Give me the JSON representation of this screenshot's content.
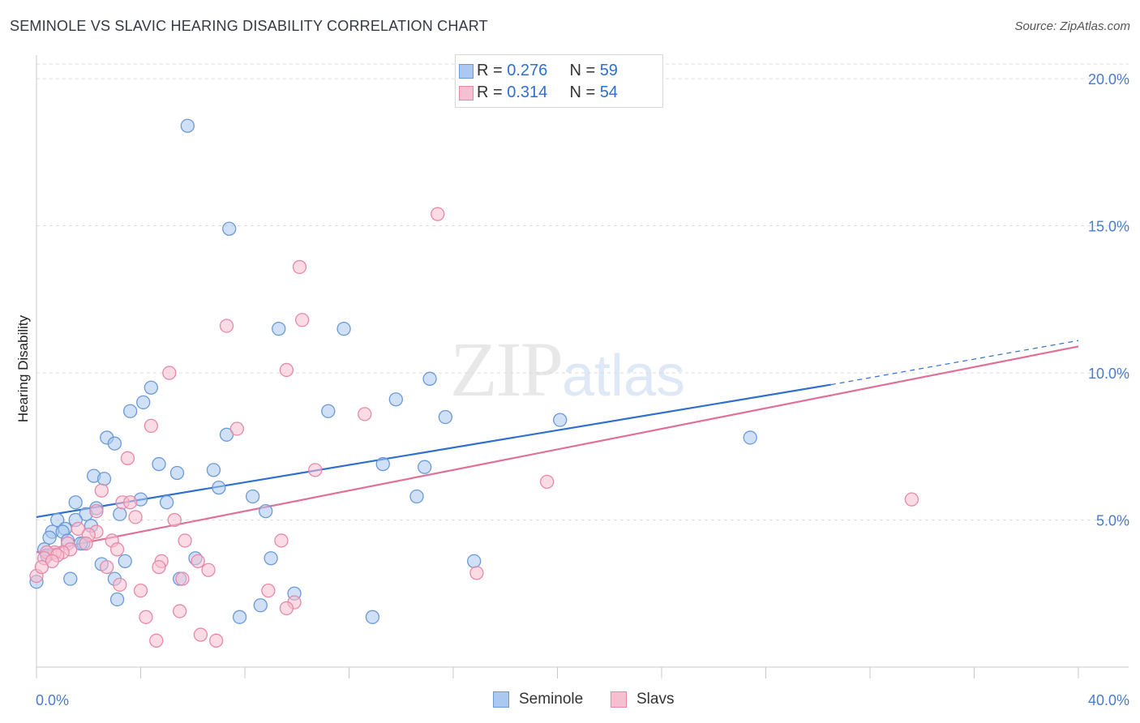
{
  "header": {
    "title": "SEMINOLE VS SLAVIC HEARING DISABILITY CORRELATION CHART",
    "source": "Source: ZipAtlas.com"
  },
  "watermark": {
    "zip": "ZIP",
    "atlas": "atlas"
  },
  "legend": {
    "rows": [
      {
        "r_label": "R = ",
        "r_value": "0.276",
        "n_label": "N = ",
        "n_value": "59",
        "color": "#aac8f0",
        "border": "#6a9ad8"
      },
      {
        "r_label": "R = ",
        "r_value": "0.314",
        "n_label": "N = ",
        "n_value": "54",
        "color": "#f7c0d0",
        "border": "#e888a8"
      }
    ]
  },
  "bottom_legend": {
    "seminole": "Seminole",
    "slavs": "Slavs"
  },
  "chart_data": {
    "type": "scatter",
    "title": "SEMINOLE VS SLAVIC HEARING DISABILITY CORRELATION CHART",
    "xlabel": "",
    "ylabel": "Hearing Disability",
    "xlim": [
      0,
      40
    ],
    "ylim": [
      0,
      20.5
    ],
    "x_tick_labels": [
      "0.0%",
      "40.0%"
    ],
    "y_ticks": [
      5,
      10,
      15,
      20
    ],
    "y_tick_labels": [
      "5.0%",
      "10.0%",
      "15.0%",
      "20.0%"
    ],
    "grid": true,
    "series": [
      {
        "name": "Seminole",
        "color": "#6a9ad8",
        "fill": "#aac8f0",
        "line_color": "#2f6fd0",
        "trend": {
          "x0": 0,
          "y0": 5.1,
          "x1": 30.5,
          "y1": 9.6,
          "dash_to_x": 40,
          "dash_to_y": 11.1
        },
        "points": [
          [
            5.8,
            18.4
          ],
          [
            7.4,
            14.9
          ],
          [
            9.3,
            11.5
          ],
          [
            11.8,
            11.5
          ],
          [
            15.1,
            9.8
          ],
          [
            4.4,
            9.5
          ],
          [
            4.1,
            9.0
          ],
          [
            13.8,
            9.1
          ],
          [
            3.6,
            8.7
          ],
          [
            11.2,
            8.7
          ],
          [
            15.7,
            8.5
          ],
          [
            20.1,
            8.4
          ],
          [
            27.4,
            7.8
          ],
          [
            2.7,
            7.8
          ],
          [
            3.0,
            7.6
          ],
          [
            7.3,
            7.9
          ],
          [
            4.7,
            6.9
          ],
          [
            13.3,
            6.9
          ],
          [
            14.9,
            6.8
          ],
          [
            6.8,
            6.7
          ],
          [
            5.4,
            6.6
          ],
          [
            2.2,
            6.5
          ],
          [
            2.6,
            6.4
          ],
          [
            7.0,
            6.1
          ],
          [
            14.6,
            5.8
          ],
          [
            8.3,
            5.8
          ],
          [
            4.0,
            5.7
          ],
          [
            5.0,
            5.6
          ],
          [
            1.5,
            5.6
          ],
          [
            2.3,
            5.4
          ],
          [
            8.8,
            5.3
          ],
          [
            3.2,
            5.2
          ],
          [
            1.9,
            5.2
          ],
          [
            0.8,
            5.0
          ],
          [
            1.5,
            5.0
          ],
          [
            1.1,
            4.7
          ],
          [
            0.6,
            4.6
          ],
          [
            1.0,
            4.6
          ],
          [
            2.1,
            4.8
          ],
          [
            0.5,
            4.4
          ],
          [
            1.2,
            4.3
          ],
          [
            1.8,
            4.2
          ],
          [
            1.7,
            4.2
          ],
          [
            0.3,
            4.0
          ],
          [
            0.4,
            3.8
          ],
          [
            6.1,
            3.7
          ],
          [
            9.0,
            3.7
          ],
          [
            2.5,
            3.5
          ],
          [
            3.4,
            3.6
          ],
          [
            16.8,
            3.6
          ],
          [
            1.3,
            3.0
          ],
          [
            3.0,
            3.0
          ],
          [
            5.5,
            3.0
          ],
          [
            9.9,
            2.5
          ],
          [
            3.1,
            2.3
          ],
          [
            8.6,
            2.1
          ],
          [
            12.9,
            1.7
          ],
          [
            7.8,
            1.7
          ],
          [
            0.0,
            2.9
          ]
        ]
      },
      {
        "name": "Slavs",
        "color": "#e888a8",
        "fill": "#f7c0d0",
        "line_color": "#e07098",
        "trend": {
          "x0": 0,
          "y0": 3.9,
          "x1": 40,
          "y1": 10.9
        },
        "points": [
          [
            15.4,
            15.4
          ],
          [
            10.1,
            13.6
          ],
          [
            10.2,
            11.8
          ],
          [
            7.3,
            11.6
          ],
          [
            5.1,
            10.0
          ],
          [
            9.6,
            10.1
          ],
          [
            12.6,
            8.6
          ],
          [
            4.4,
            8.2
          ],
          [
            7.7,
            8.1
          ],
          [
            3.5,
            7.1
          ],
          [
            10.7,
            6.7
          ],
          [
            19.6,
            6.3
          ],
          [
            2.5,
            6.0
          ],
          [
            33.6,
            5.7
          ],
          [
            3.3,
            5.6
          ],
          [
            3.6,
            5.6
          ],
          [
            2.3,
            5.3
          ],
          [
            3.8,
            5.1
          ],
          [
            5.3,
            5.0
          ],
          [
            1.6,
            4.7
          ],
          [
            2.3,
            4.6
          ],
          [
            2.0,
            4.5
          ],
          [
            2.9,
            4.3
          ],
          [
            5.7,
            4.3
          ],
          [
            9.4,
            4.3
          ],
          [
            1.2,
            4.2
          ],
          [
            1.9,
            4.2
          ],
          [
            1.3,
            4.0
          ],
          [
            3.1,
            4.0
          ],
          [
            1.0,
            3.9
          ],
          [
            0.7,
            3.9
          ],
          [
            0.4,
            3.9
          ],
          [
            0.8,
            3.8
          ],
          [
            0.3,
            3.7
          ],
          [
            0.6,
            3.6
          ],
          [
            4.8,
            3.6
          ],
          [
            6.2,
            3.6
          ],
          [
            2.7,
            3.4
          ],
          [
            4.7,
            3.4
          ],
          [
            6.6,
            3.3
          ],
          [
            16.9,
            3.2
          ],
          [
            5.6,
            3.0
          ],
          [
            3.2,
            2.8
          ],
          [
            4.0,
            2.6
          ],
          [
            8.9,
            2.6
          ],
          [
            9.9,
            2.2
          ],
          [
            9.6,
            2.0
          ],
          [
            5.5,
            1.9
          ],
          [
            4.2,
            1.7
          ],
          [
            6.3,
            1.1
          ],
          [
            4.6,
            0.9
          ],
          [
            6.9,
            0.9
          ],
          [
            0.0,
            3.1
          ],
          [
            0.2,
            3.4
          ]
        ]
      }
    ]
  }
}
